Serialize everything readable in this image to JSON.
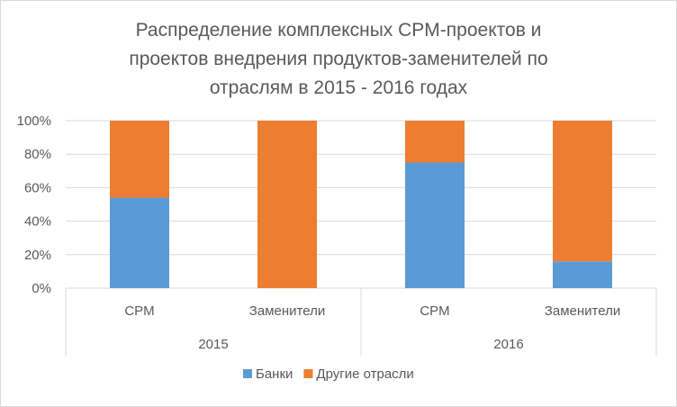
{
  "chart_data": {
    "type": "bar",
    "stacked": true,
    "percent": true,
    "title_lines": [
      "Распределение комплексных CPM-проектов и",
      "проектов внедрения продуктов-заменителей по",
      "отраслям в 2015 - 2016 годах"
    ],
    "groups": [
      {
        "label": "2015",
        "categories": [
          "CPM",
          "Заменители"
        ]
      },
      {
        "label": "2016",
        "categories": [
          "CPM",
          "Заменители"
        ]
      }
    ],
    "categories": [
      "CPM",
      "Заменители",
      "CPM",
      "Заменители"
    ],
    "series": [
      {
        "name": "Банки",
        "color": "#5b9bd5",
        "values": [
          54,
          0,
          75,
          16
        ]
      },
      {
        "name": "Другие отрасли",
        "color": "#ed7d31",
        "values": [
          46,
          100,
          25,
          84
        ]
      }
    ],
    "y_ticks": [
      "0%",
      "20%",
      "40%",
      "60%",
      "80%",
      "100%"
    ],
    "ylim": [
      0,
      100
    ],
    "grid": true,
    "legend_position": "bottom"
  }
}
